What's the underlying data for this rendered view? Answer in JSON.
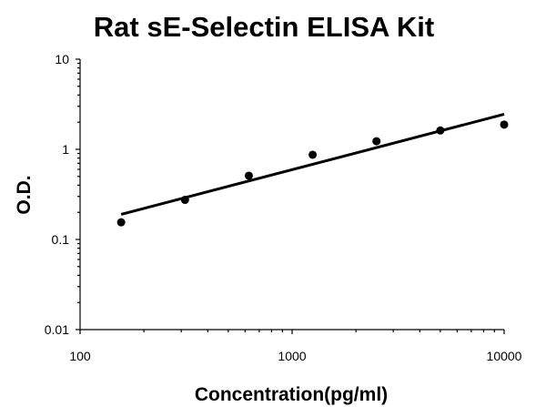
{
  "chart_data": {
    "type": "scatter",
    "title": "Rat sE-Selectin ELISA Kit",
    "xlabel": "Concentration(pg/ml)",
    "ylabel": "O.D.",
    "x_scale": "log",
    "y_scale": "log",
    "xlim": [
      100,
      10000
    ],
    "ylim": [
      0.01,
      10
    ],
    "x_ticks": [
      100,
      1000,
      10000
    ],
    "x_tick_labels": [
      "100",
      "1000",
      "10000"
    ],
    "y_ticks": [
      0.01,
      0.1,
      1,
      10
    ],
    "y_tick_labels": [
      "0.01",
      "0.1",
      "1",
      "10"
    ],
    "grid": false,
    "legend": "none",
    "series": [
      {
        "x": [
          156.25,
          312.5,
          625,
          1250,
          2500,
          5000,
          10000
        ],
        "y": [
          0.155,
          0.275,
          0.51,
          0.87,
          1.23,
          1.62,
          1.88
        ]
      }
    ],
    "trendline": {
      "type": "power",
      "x": [
        156.25,
        10000
      ],
      "y": [
        0.19,
        2.45
      ]
    }
  }
}
